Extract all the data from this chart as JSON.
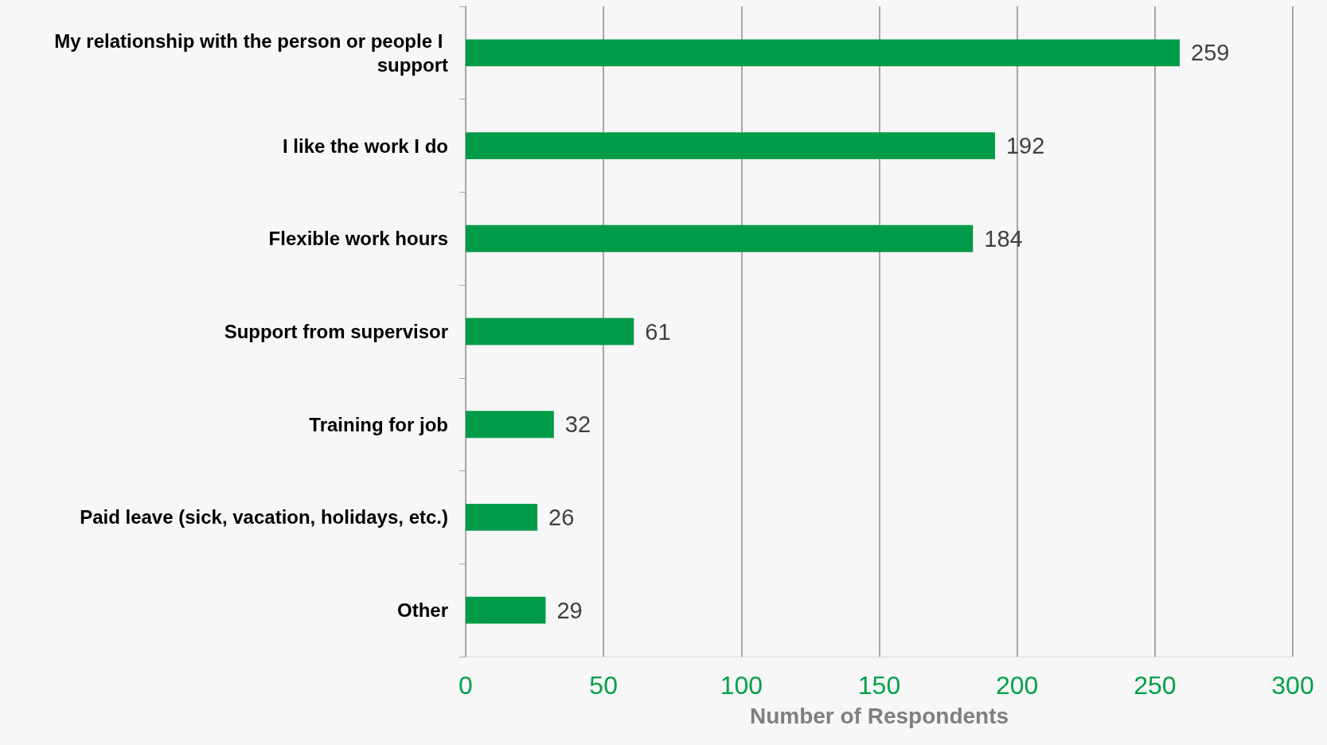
{
  "chart_data": {
    "type": "bar",
    "orientation": "horizontal",
    "xlabel": "Number of Respondents",
    "categories": [
      "My relationship with the person or people I support",
      "I like the work I do",
      "Flexible work hours",
      "Support from supervisor",
      "Training for job",
      "Paid leave (sick, vacation, holidays, etc.)",
      "Other"
    ],
    "values": [
      259,
      192,
      184,
      61,
      32,
      26,
      29
    ],
    "color": "#009b48",
    "xlim": [
      0,
      300
    ],
    "xticks": [
      0,
      50,
      100,
      150,
      200,
      250,
      300
    ],
    "grid": "x",
    "data_labels": true
  }
}
